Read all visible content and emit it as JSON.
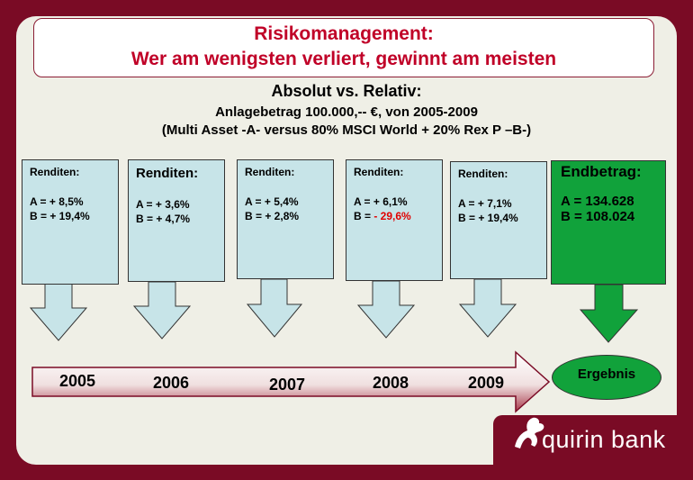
{
  "title": {
    "line1": "Risikomanagement:",
    "line2": "Wer am wenigsten verliert, gewinnt am meisten"
  },
  "subtitle": {
    "line1": "Absolut vs. Relativ:",
    "line2": "Anlagebetrag 100.000,-- €, von 2005-2009",
    "line3": "(Multi Asset  -A- versus 80% MSCI World + 20% Rex P –B-)"
  },
  "years": [
    {
      "label": "2005",
      "header": "Renditen:",
      "a": "A = +   8,5%",
      "b_prefix": "B = + 19,4%",
      "b_neg": ""
    },
    {
      "label": "2006",
      "header": "Renditen:",
      "a": "A = +   3,6%",
      "b_prefix": "B = +   4,7%",
      "b_neg": ""
    },
    {
      "label": "2007",
      "header": "Renditen:",
      "a": "A = +   5,4%",
      "b_prefix": "B = +   2,8%",
      "b_neg": ""
    },
    {
      "label": "2008",
      "header": "Renditen:",
      "a": "A = +  6,1%",
      "b_prefix": "B = ",
      "b_neg": "- 29,6%"
    },
    {
      "label": "2009",
      "header": "Renditen:",
      "a": "A = +  7,1%",
      "b_prefix": "B = + 19,4%",
      "b_neg": ""
    }
  ],
  "endbetrag": {
    "header": "Endbetrag:",
    "a": "A = 134.628",
    "b": "B = 108.024"
  },
  "ergebnis": "Ergebnis",
  "logo": {
    "text": "quirin bank"
  },
  "colors": {
    "brand": "#7a0b25",
    "title": "#c00027",
    "box": "#c7e4e8",
    "green": "#11a23b",
    "negative": "#e00000"
  }
}
